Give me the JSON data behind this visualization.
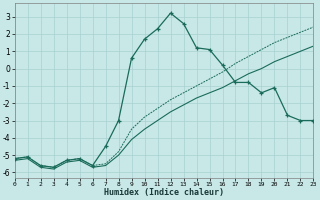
{
  "xlabel": "Humidex (Indice chaleur)",
  "background_color": "#c8e8e8",
  "grid_color": "#a8d0d0",
  "line_color": "#1a6b5a",
  "xlim": [
    0,
    23
  ],
  "ylim": [
    -6.3,
    3.8
  ],
  "yticks": [
    3,
    2,
    1,
    0,
    -1,
    -2,
    -3,
    -4,
    -5,
    -6
  ],
  "xticks": [
    0,
    1,
    2,
    3,
    4,
    5,
    6,
    7,
    8,
    9,
    10,
    11,
    12,
    13,
    14,
    15,
    16,
    17,
    18,
    19,
    20,
    21,
    22,
    23
  ],
  "line_zigzag_x": [
    0,
    1,
    2,
    3,
    4,
    5,
    6,
    7,
    8,
    9,
    10,
    11,
    12,
    13,
    14,
    15,
    16,
    17,
    18,
    19,
    20,
    21,
    22,
    23
  ],
  "line_zigzag_y": [
    -5.2,
    -5.1,
    -5.6,
    -5.7,
    -5.3,
    -5.2,
    -5.6,
    -4.5,
    -3.0,
    0.6,
    1.7,
    2.3,
    3.2,
    2.6,
    1.2,
    1.1,
    0.2,
    -0.8,
    -0.8,
    -1.4,
    -1.1,
    -2.7,
    -3.0,
    -3.0
  ],
  "line_dotted_x": [
    0,
    1,
    2,
    3,
    4,
    5,
    6,
    7,
    8,
    9,
    10,
    11,
    12,
    13,
    14,
    15,
    16,
    17,
    18,
    19,
    20,
    21,
    22,
    23
  ],
  "line_dotted_y": [
    -5.2,
    -5.1,
    -5.6,
    -5.7,
    -5.3,
    -5.2,
    -5.6,
    -5.5,
    -4.8,
    -3.5,
    -2.8,
    -2.3,
    -1.8,
    -1.4,
    -1.0,
    -0.6,
    -0.2,
    0.3,
    0.7,
    1.1,
    1.5,
    1.8,
    2.1,
    2.4
  ],
  "line_solid_x": [
    0,
    1,
    2,
    3,
    4,
    5,
    6,
    7,
    8,
    9,
    10,
    11,
    12,
    13,
    14,
    15,
    16,
    17,
    18,
    19,
    20,
    21,
    22,
    23
  ],
  "line_solid_y": [
    -5.3,
    -5.2,
    -5.7,
    -5.8,
    -5.4,
    -5.3,
    -5.7,
    -5.6,
    -5.0,
    -4.1,
    -3.5,
    -3.0,
    -2.5,
    -2.1,
    -1.7,
    -1.4,
    -1.1,
    -0.7,
    -0.3,
    0.0,
    0.4,
    0.7,
    1.0,
    1.3
  ]
}
